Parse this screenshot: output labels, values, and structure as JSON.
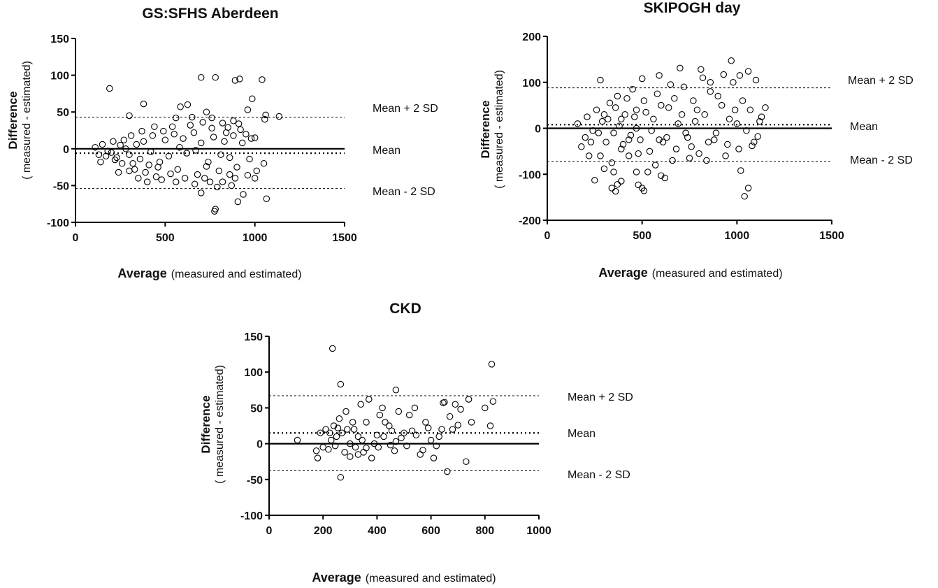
{
  "chart_data": [
    {
      "type": "scatter",
      "title": "GS:SFHS Aberdeen",
      "xlabel": "Average",
      "xlabel_detail": "(measured and estimated)",
      "ylabel": "Difference",
      "ylabel_detail": "( measured - estimated)",
      "xlim": [
        0,
        1500
      ],
      "ylim": [
        -100,
        150
      ],
      "xticks": [
        "0",
        "500",
        "1000",
        "1500"
      ],
      "yticks": [
        "150",
        "100",
        "50",
        "0",
        "-50",
        "-100"
      ],
      "xtick_values": [
        0,
        500,
        1000,
        1500
      ],
      "ytick_values": [
        150,
        100,
        50,
        0,
        -50,
        -100
      ],
      "zero_line": 0,
      "mean": -6,
      "upper_limit": 43,
      "lower_limit": -54,
      "annotations": {
        "upper": "Mean + 2 SD",
        "mean": "Mean",
        "lower": "Mean - 2 SD"
      },
      "points": [
        [
          190,
          82
        ],
        [
          380,
          61
        ],
        [
          300,
          45
        ],
        [
          700,
          97
        ],
        [
          780,
          97
        ],
        [
          890,
          93
        ],
        [
          915,
          95
        ],
        [
          1040,
          94
        ],
        [
          985,
          68
        ],
        [
          1055,
          40
        ],
        [
          1060,
          46
        ],
        [
          1135,
          44
        ],
        [
          960,
          53
        ],
        [
          625,
          60
        ],
        [
          585,
          57
        ],
        [
          730,
          50
        ],
        [
          560,
          42
        ],
        [
          650,
          43
        ],
        [
          760,
          42
        ],
        [
          820,
          35
        ],
        [
          850,
          29
        ],
        [
          880,
          38
        ],
        [
          910,
          34
        ],
        [
          950,
          20
        ],
        [
          1000,
          15
        ],
        [
          780,
          -82
        ],
        [
          775,
          -85
        ],
        [
          700,
          -60
        ],
        [
          905,
          -72
        ],
        [
          750,
          -45
        ],
        [
          790,
          -52
        ],
        [
          935,
          -62
        ],
        [
          870,
          -50
        ],
        [
          1000,
          -40
        ],
        [
          1065,
          -68
        ],
        [
          665,
          -48
        ],
        [
          720,
          -40
        ],
        [
          820,
          -45
        ],
        [
          860,
          -35
        ],
        [
          560,
          -45
        ],
        [
          480,
          -42
        ],
        [
          400,
          -45
        ],
        [
          450,
          -38
        ],
        [
          350,
          -40
        ],
        [
          300,
          -30
        ],
        [
          240,
          -32
        ],
        [
          140,
          -18
        ],
        [
          170,
          -10
        ],
        [
          200,
          -5
        ],
        [
          220,
          -15
        ],
        [
          250,
          5
        ],
        [
          270,
          12
        ],
        [
          300,
          -8
        ],
        [
          320,
          -20
        ],
        [
          340,
          6
        ],
        [
          360,
          -14
        ],
        [
          380,
          10
        ],
        [
          410,
          -22
        ],
        [
          430,
          18
        ],
        [
          460,
          -25
        ],
        [
          490,
          24
        ],
        [
          520,
          -10
        ],
        [
          540,
          30
        ],
        [
          570,
          -28
        ],
        [
          600,
          14
        ],
        [
          620,
          -6
        ],
        [
          660,
          22
        ],
        [
          680,
          -35
        ],
        [
          700,
          8
        ],
        [
          740,
          -18
        ],
        [
          760,
          28
        ],
        [
          800,
          -30
        ],
        [
          830,
          10
        ],
        [
          860,
          -12
        ],
        [
          880,
          18
        ],
        [
          900,
          -25
        ],
        [
          930,
          8
        ],
        [
          960,
          -36
        ],
        [
          980,
          14
        ],
        [
          110,
          2
        ],
        [
          130,
          -8
        ],
        [
          150,
          6
        ],
        [
          180,
          -3
        ],
        [
          210,
          10
        ],
        [
          230,
          -12
        ],
        [
          260,
          -20
        ],
        [
          280,
          0
        ],
        [
          310,
          18
        ],
        [
          330,
          -28
        ],
        [
          370,
          24
        ],
        [
          390,
          -32
        ],
        [
          420,
          -4
        ],
        [
          440,
          30
        ],
        [
          470,
          -18
        ],
        [
          500,
          12
        ],
        [
          530,
          -34
        ],
        [
          550,
          20
        ],
        [
          580,
          2
        ],
        [
          610,
          -40
        ],
        [
          640,
          32
        ],
        [
          670,
          -2
        ],
        [
          710,
          36
        ],
        [
          730,
          -24
        ],
        [
          770,
          16
        ],
        [
          810,
          -8
        ],
        [
          840,
          22
        ],
        [
          890,
          -40
        ],
        [
          920,
          26
        ],
        [
          970,
          -14
        ],
        [
          1010,
          -30
        ],
        [
          1050,
          -20
        ]
      ]
    },
    {
      "type": "scatter",
      "title": "SKIPOGH day",
      "xlabel": "Average",
      "xlabel_detail": "(measured and estimated)",
      "ylabel": "Difference",
      "ylabel_detail": "( measured - estimated)",
      "xlim": [
        0,
        1500
      ],
      "ylim": [
        -200,
        200
      ],
      "xticks": [
        "0",
        "500",
        "1000",
        "1500"
      ],
      "yticks": [
        "200",
        "100",
        "0",
        "-100",
        "-200"
      ],
      "xtick_values": [
        0,
        500,
        1000,
        1500
      ],
      "ytick_values": [
        200,
        100,
        0,
        -100,
        -200
      ],
      "zero_line": 0,
      "mean": 8,
      "upper_limit": 88,
      "lower_limit": -72,
      "annotations": {
        "upper": "Mean + 2 SD",
        "mean": "Mean",
        "lower": "Mean - 2 SD"
      },
      "points": [
        [
          970,
          147
        ],
        [
          700,
          131
        ],
        [
          810,
          128
        ],
        [
          1060,
          124
        ],
        [
          1100,
          105
        ],
        [
          1015,
          115
        ],
        [
          930,
          117
        ],
        [
          280,
          105
        ],
        [
          500,
          108
        ],
        [
          590,
          115
        ],
        [
          860,
          100
        ],
        [
          1150,
          45
        ],
        [
          1130,
          25
        ],
        [
          1110,
          -18
        ],
        [
          1080,
          -38
        ],
        [
          1060,
          -130
        ],
        [
          1040,
          -148
        ],
        [
          1020,
          -92
        ],
        [
          880,
          -25
        ],
        [
          760,
          -40
        ],
        [
          620,
          -108
        ],
        [
          600,
          -103
        ],
        [
          510,
          -136
        ],
        [
          500,
          -130
        ],
        [
          480,
          -123
        ],
        [
          470,
          -95
        ],
        [
          360,
          -137
        ],
        [
          340,
          -130
        ],
        [
          370,
          -122
        ],
        [
          390,
          -115
        ],
        [
          250,
          -113
        ],
        [
          300,
          -88
        ],
        [
          220,
          -60
        ],
        [
          180,
          -40
        ],
        [
          200,
          -20
        ],
        [
          160,
          10
        ],
        [
          210,
          25
        ],
        [
          240,
          -5
        ],
        [
          260,
          40
        ],
        [
          290,
          15
        ],
        [
          310,
          -30
        ],
        [
          330,
          55
        ],
        [
          350,
          -10
        ],
        [
          370,
          70
        ],
        [
          390,
          -45
        ],
        [
          410,
          30
        ],
        [
          430,
          -60
        ],
        [
          450,
          85
        ],
        [
          470,
          0
        ],
        [
          490,
          -25
        ],
        [
          510,
          60
        ],
        [
          540,
          -50
        ],
        [
          560,
          20
        ],
        [
          580,
          75
        ],
        [
          610,
          -30
        ],
        [
          640,
          45
        ],
        [
          660,
          -70
        ],
        [
          690,
          10
        ],
        [
          720,
          90
        ],
        [
          740,
          -20
        ],
        [
          770,
          60
        ],
        [
          800,
          -55
        ],
        [
          830,
          30
        ],
        [
          860,
          80
        ],
        [
          890,
          -10
        ],
        [
          920,
          50
        ],
        [
          950,
          -35
        ],
        [
          980,
          100
        ],
        [
          1000,
          10
        ],
        [
          1030,
          60
        ],
        [
          1050,
          -5
        ],
        [
          1070,
          40
        ],
        [
          1090,
          -30
        ],
        [
          1120,
          15
        ],
        [
          280,
          -60
        ],
        [
          320,
          20
        ],
        [
          340,
          -75
        ],
        [
          360,
          45
        ],
        [
          380,
          5
        ],
        [
          400,
          -35
        ],
        [
          420,
          65
        ],
        [
          440,
          -15
        ],
        [
          460,
          25
        ],
        [
          480,
          -55
        ],
        [
          520,
          35
        ],
        [
          550,
          -5
        ],
        [
          570,
          -80
        ],
        [
          600,
          50
        ],
        [
          630,
          -20
        ],
        [
          650,
          95
        ],
        [
          680,
          -45
        ],
        [
          710,
          30
        ],
        [
          750,
          -65
        ],
        [
          790,
          40
        ],
        [
          820,
          110
        ],
        [
          850,
          -30
        ],
        [
          900,
          70
        ],
        [
          940,
          -60
        ],
        [
          990,
          40
        ],
        [
          1010,
          -45
        ],
        [
          230,
          -30
        ],
        [
          270,
          -10
        ],
        [
          300,
          30
        ],
        [
          350,
          -95
        ],
        [
          390,
          20
        ],
        [
          430,
          -25
        ],
        [
          470,
          40
        ],
        [
          530,
          -95
        ],
        [
          590,
          -25
        ],
        [
          670,
          65
        ],
        [
          730,
          -10
        ],
        [
          780,
          15
        ],
        [
          840,
          -70
        ],
        [
          960,
          20
        ]
      ]
    },
    {
      "type": "scatter",
      "title": "CKD",
      "xlabel": "Average",
      "xlabel_detail": "(measured and estimated)",
      "ylabel": "Difference",
      "ylabel_detail": "( measured - estimated)",
      "xlim": [
        0,
        1000
      ],
      "ylim": [
        -100,
        150
      ],
      "xticks": [
        "0",
        "200",
        "400",
        "600",
        "800",
        "1000"
      ],
      "yticks": [
        "150",
        "100",
        "50",
        "0",
        "-50",
        "-100"
      ],
      "xtick_values": [
        0,
        200,
        400,
        600,
        800,
        1000
      ],
      "ytick_values": [
        150,
        100,
        50,
        0,
        -50,
        -100
      ],
      "zero_line": 0,
      "mean": 15,
      "upper_limit": 67,
      "lower_limit": -37,
      "annotations": {
        "upper": "Mean + 2 SD",
        "mean": "Mean",
        "lower": "Mean - 2 SD"
      },
      "points": [
        [
          235,
          133
        ],
        [
          265,
          83
        ],
        [
          470,
          75
        ],
        [
          825,
          111
        ],
        [
          830,
          59
        ],
        [
          820,
          25
        ],
        [
          740,
          62
        ],
        [
          730,
          -25
        ],
        [
          645,
          57
        ],
        [
          650,
          58
        ],
        [
          660,
          -39
        ],
        [
          640,
          20
        ],
        [
          690,
          55
        ],
        [
          700,
          26
        ],
        [
          710,
          48
        ],
        [
          680,
          20
        ],
        [
          600,
          5
        ],
        [
          570,
          -9
        ],
        [
          580,
          30
        ],
        [
          540,
          50
        ],
        [
          530,
          18
        ],
        [
          500,
          15
        ],
        [
          470,
          3
        ],
        [
          450,
          -2
        ],
        [
          420,
          50
        ],
        [
          410,
          40
        ],
        [
          400,
          12
        ],
        [
          380,
          -20
        ],
        [
          370,
          62
        ],
        [
          350,
          -12
        ],
        [
          340,
          55
        ],
        [
          330,
          10
        ],
        [
          320,
          -5
        ],
        [
          310,
          30
        ],
        [
          300,
          -18
        ],
        [
          290,
          20
        ],
        [
          280,
          -12
        ],
        [
          270,
          15
        ],
        [
          265,
          -47
        ],
        [
          260,
          35
        ],
        [
          250,
          10
        ],
        [
          240,
          25
        ],
        [
          230,
          5
        ],
        [
          220,
          -8
        ],
        [
          210,
          20
        ],
        [
          200,
          -5
        ],
        [
          190,
          15
        ],
        [
          180,
          -20
        ],
        [
          105,
          5
        ],
        [
          175,
          -10
        ],
        [
          360,
          -6
        ],
        [
          390,
          0
        ],
        [
          430,
          30
        ],
        [
          455,
          18
        ],
        [
          480,
          45
        ],
        [
          510,
          -3
        ],
        [
          560,
          -15
        ],
        [
          620,
          -3
        ],
        [
          360,
          30
        ],
        [
          300,
          0
        ],
        [
          330,
          -15
        ],
        [
          345,
          5
        ],
        [
          315,
          20
        ],
        [
          285,
          45
        ],
        [
          255,
          22
        ],
        [
          245,
          -3
        ],
        [
          225,
          15
        ],
        [
          405,
          -5
        ],
        [
          425,
          10
        ],
        [
          445,
          25
        ],
        [
          465,
          -10
        ],
        [
          490,
          8
        ],
        [
          520,
          40
        ],
        [
          545,
          12
        ],
        [
          590,
          22
        ],
        [
          610,
          -20
        ],
        [
          630,
          10
        ],
        [
          670,
          38
        ],
        [
          750,
          30
        ],
        [
          800,
          50
        ]
      ]
    }
  ]
}
